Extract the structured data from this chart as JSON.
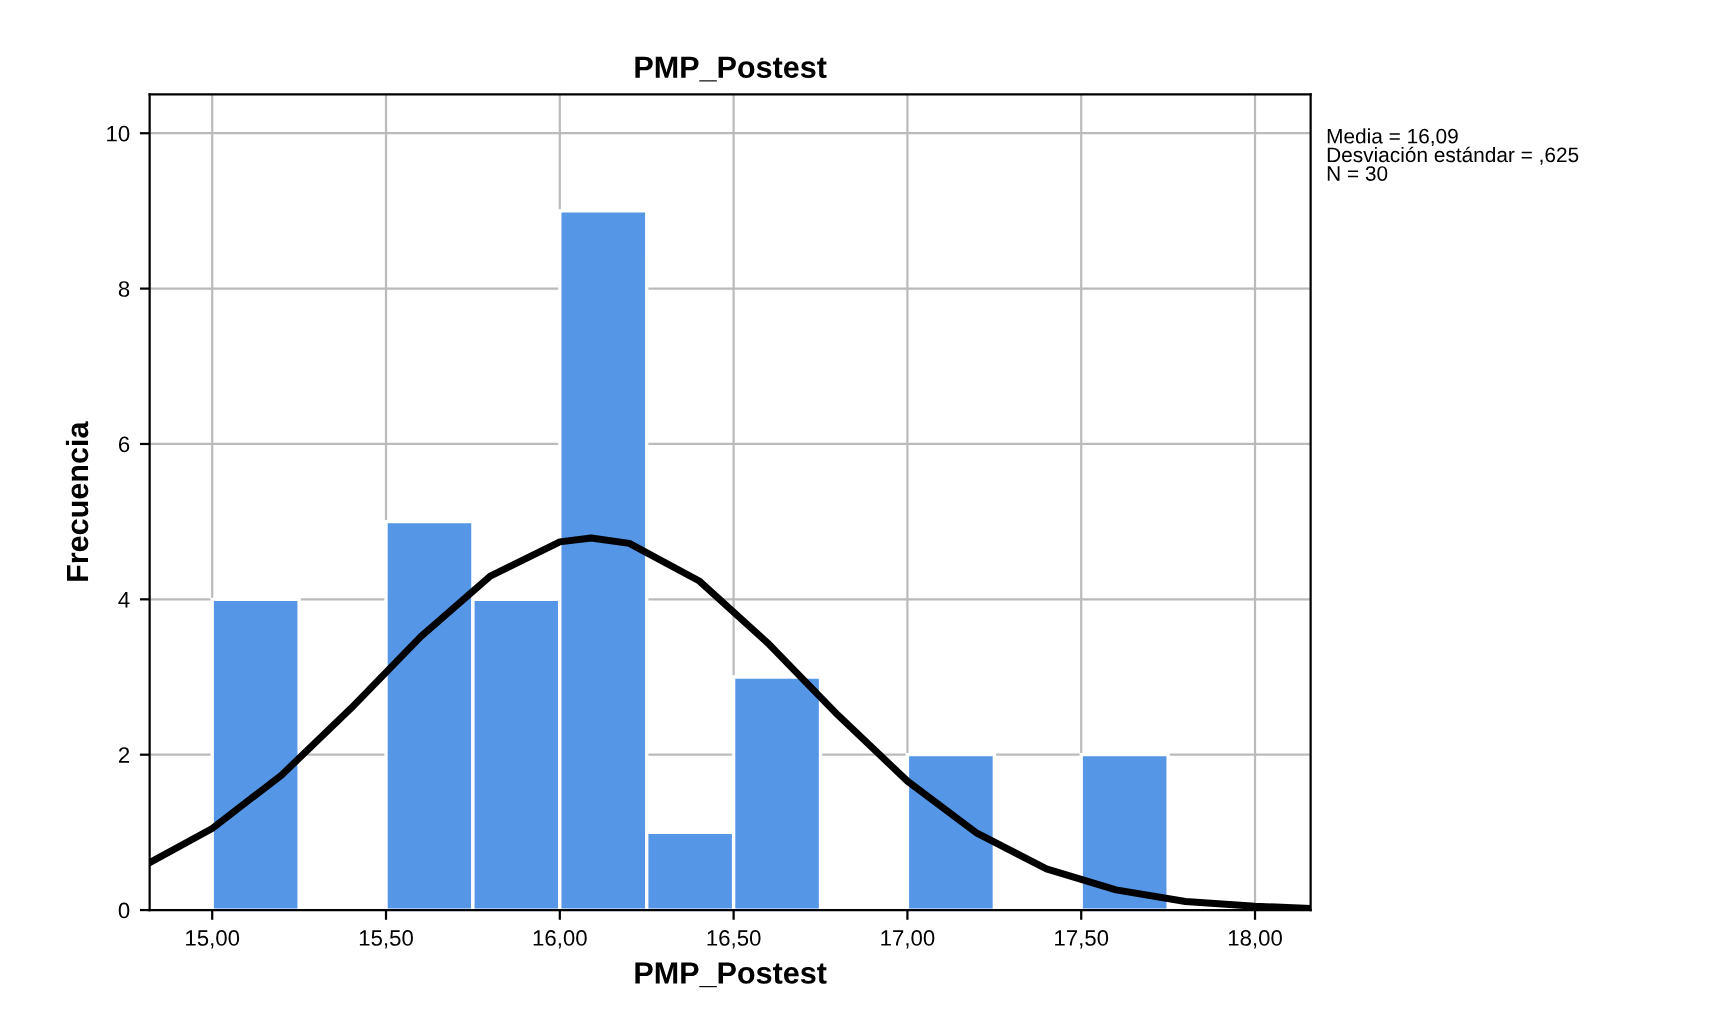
{
  "chart_data": {
    "type": "histogram",
    "title": "PMP_Postest",
    "xlabel": "PMP_Postest",
    "ylabel": "Frecuencia",
    "bins": [
      15.0,
      15.25,
      15.5,
      15.75,
      16.0,
      16.25,
      16.5,
      16.75,
      17.0,
      17.25,
      17.5,
      17.75
    ],
    "values": [
      4,
      0,
      5,
      4,
      9,
      1,
      3,
      0,
      2,
      0,
      2
    ],
    "color": "#5696e6",
    "series": [
      {
        "type": "line",
        "color": "#000000",
        "x": [
          14.82,
          15.0,
          15.2,
          15.4,
          15.6,
          15.8,
          16.0,
          16.09,
          16.2,
          16.4,
          16.6,
          16.8,
          17.0,
          17.2,
          17.4,
          17.6,
          17.8,
          18.0,
          18.16
        ],
        "values": [
          0.61,
          1.05,
          1.74,
          2.6,
          3.52,
          4.3,
          4.74,
          4.79,
          4.72,
          4.24,
          3.43,
          2.51,
          1.66,
          0.99,
          0.53,
          0.26,
          0.11,
          0.05,
          0.02
        ]
      }
    ],
    "xlim": [
      14.82,
      18.16
    ],
    "ylim": [
      0,
      10.5
    ],
    "xticks": [
      {
        "value": 15,
        "label": "15,00"
      },
      {
        "value": 15.5,
        "label": "15,50"
      },
      {
        "value": 16,
        "label": "16,00"
      },
      {
        "value": 16.5,
        "label": "16,50"
      },
      {
        "value": 17,
        "label": "17,00"
      },
      {
        "value": 17.5,
        "label": "17,50"
      },
      {
        "value": 18,
        "label": "18,00"
      }
    ],
    "yticks": [
      0,
      2,
      4,
      6,
      8,
      10
    ],
    "grid": true,
    "annotations": [
      "Media = 16,09\nDesviación estándar = ,625\nN = 30"
    ]
  }
}
